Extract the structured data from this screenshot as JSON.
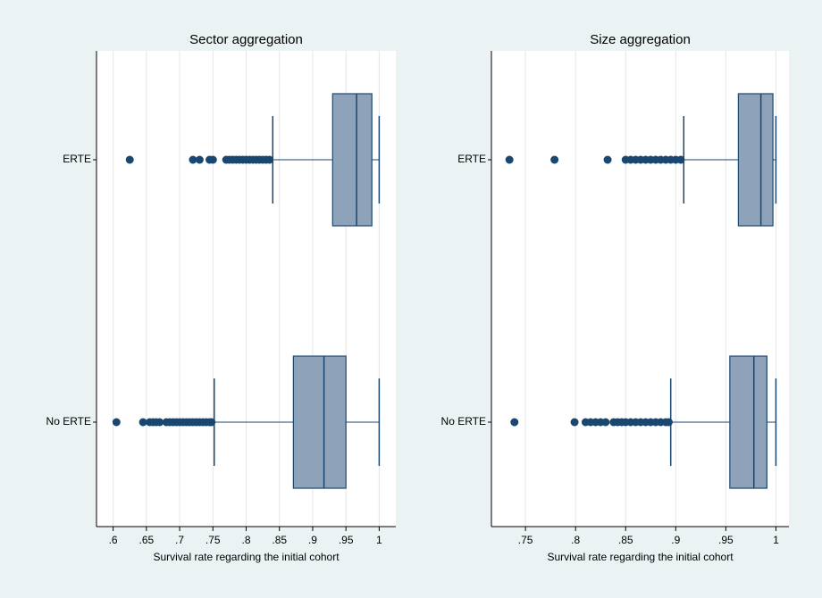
{
  "chart_data": [
    {
      "type": "box",
      "title": "Sector aggregation",
      "x_label": "Survival rate regarding the initial cohort",
      "categories": [
        "ERTE",
        "No ERTE"
      ],
      "box_color": "#8ea3ba",
      "line_color": "#1a476f",
      "grid": true,
      "xlim": [
        0.575,
        1.025
      ],
      "xticks": [
        {
          "value": 0.6,
          "label": ".6"
        },
        {
          "value": 0.65,
          "label": ".65"
        },
        {
          "value": 0.7,
          "label": ".7"
        },
        {
          "value": 0.75,
          "label": ".75"
        },
        {
          "value": 0.8,
          "label": ".8"
        },
        {
          "value": 0.85,
          "label": ".85"
        },
        {
          "value": 0.9,
          "label": ".9"
        },
        {
          "value": 0.95,
          "label": ".95"
        },
        1
      ],
      "boxes": [
        {
          "whislo": 0.84,
          "q1": 0.93,
          "med": 0.966,
          "q3": 0.989,
          "whishi": 1.0,
          "fliers": [
            0.625,
            0.72,
            0.73,
            0.745,
            0.75,
            0.77,
            0.775,
            0.78,
            0.785,
            0.79,
            0.795,
            0.8,
            0.805,
            0.81,
            0.815,
            0.82,
            0.825,
            0.83,
            0.835
          ]
        },
        {
          "whislo": 0.752,
          "q1": 0.871,
          "med": 0.917,
          "q3": 0.95,
          "whishi": 1.0,
          "fliers": [
            0.605,
            0.645,
            0.655,
            0.66,
            0.665,
            0.67,
            0.68,
            0.685,
            0.69,
            0.695,
            0.7,
            0.705,
            0.71,
            0.715,
            0.72,
            0.725,
            0.73,
            0.735,
            0.74,
            0.745,
            0.748
          ]
        }
      ]
    },
    {
      "type": "box",
      "title": "Size aggregation",
      "x_label": "Survival rate regarding the initial cohort",
      "categories": [
        "ERTE",
        "No ERTE"
      ],
      "box_color": "#8ea3ba",
      "line_color": "#1a476f",
      "grid": true,
      "xlim": [
        0.716,
        1.013
      ],
      "xticks": [
        {
          "value": 0.75,
          "label": ".75"
        },
        {
          "value": 0.8,
          "label": ".8"
        },
        {
          "value": 0.85,
          "label": ".85"
        },
        {
          "value": 0.9,
          "label": ".9"
        },
        {
          "value": 0.95,
          "label": ".95"
        },
        1
      ],
      "boxes": [
        {
          "whislo": 0.908,
          "q1": 0.9625,
          "med": 0.985,
          "q3": 0.997,
          "whishi": 1.0,
          "fliers": [
            0.734,
            0.779,
            0.832,
            0.85,
            0.855,
            0.86,
            0.865,
            0.87,
            0.875,
            0.88,
            0.885,
            0.89,
            0.895,
            0.9,
            0.905
          ]
        },
        {
          "whislo": 0.895,
          "q1": 0.954,
          "med": 0.978,
          "q3": 0.991,
          "whishi": 1.0,
          "fliers": [
            0.739,
            0.799,
            0.81,
            0.815,
            0.82,
            0.825,
            0.83,
            0.838,
            0.842,
            0.846,
            0.85,
            0.855,
            0.86,
            0.865,
            0.87,
            0.875,
            0.88,
            0.885,
            0.89,
            0.893
          ]
        }
      ]
    }
  ]
}
